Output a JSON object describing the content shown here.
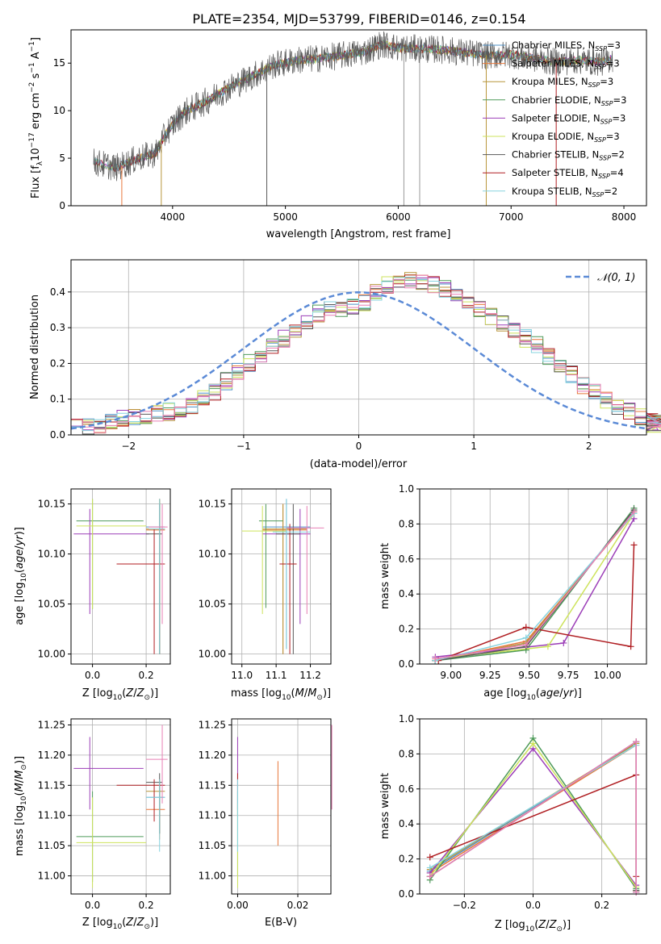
{
  "figure": {
    "suptitle": "PLATE=2354, MJD=53799, FIBERID=0146, z=0.154"
  },
  "palette": {
    "Chabrier MILES": "#4f91c7",
    "Salpeter MILES": "#e8773a",
    "Kroupa MILES": "#b8963c",
    "Chabrier ELODIE": "#4e9a5a",
    "Salpeter ELODIE": "#9c3fb8",
    "Kroupa ELODIE": "#cde35c",
    "Chabrier STELIB": "#595959",
    "Salpeter STELIB": "#b01e22",
    "Kroupa STELIB": "#86d3df",
    "gauss": "#5b8ad6",
    "pink": "#e87fb4"
  },
  "chart_data": [
    {
      "id": "spectrum",
      "type": "line",
      "title": "",
      "xlabel": "wavelength [Angstrom, rest frame]",
      "ylabel": "Flux [f_λ 10^-17 erg cm^-2 s^-1 A^-1]",
      "xlim": [
        3100,
        8200
      ],
      "ylim": [
        0,
        18.5
      ],
      "xticks": [
        "4000",
        "5000",
        "6000",
        "7000",
        "8000"
      ],
      "yticks": [
        "0",
        "5",
        "10",
        "15"
      ],
      "grid": false,
      "legend_position": "top-right",
      "series": [
        {
          "name": "Chabrier MILES, N_SSP=3"
        },
        {
          "name": "Salpeter MILES, N_SSP=3"
        },
        {
          "name": "Kroupa MILES, N_SSP=3"
        },
        {
          "name": "Chabrier ELODIE, N_SSP=3"
        },
        {
          "name": "Salpeter ELODIE, N_SSP=3"
        },
        {
          "name": "Kroupa ELODIE, N_SSP=3"
        },
        {
          "name": "Chabrier STELIB, N_SSP=2"
        },
        {
          "name": "Salpeter STELIB, N_SSP=4"
        },
        {
          "name": "Kroupa STELIB, N_SSP=2"
        }
      ],
      "continuum": {
        "x": [
          3300,
          3500,
          3700,
          3850,
          3950,
          4100,
          4300,
          4500,
          4700,
          4900,
          5100,
          5300,
          5500,
          5700,
          5850,
          6000,
          6200,
          6400,
          6600,
          6800,
          7000,
          7200,
          7400,
          7600,
          7800,
          7900
        ],
        "y": [
          4.6,
          4.0,
          5.0,
          5.5,
          7.8,
          9.8,
          11.0,
          12.4,
          13.6,
          14.8,
          15.3,
          15.5,
          15.8,
          16.2,
          17.0,
          16.6,
          16.5,
          16.4,
          16.1,
          15.8,
          15.9,
          15.5,
          15.1,
          15.3,
          15.1,
          15.5
        ]
      }
    },
    {
      "id": "residuals",
      "type": "histogram",
      "xlabel": "(data-model)/error",
      "ylabel": "Normed distribution",
      "xlim": [
        -2.5,
        2.5
      ],
      "ylim": [
        0,
        0.49
      ],
      "xticks": [
        "−2",
        "−1",
        "0",
        "1",
        "2"
      ],
      "yticks": [
        "0.0",
        "0.1",
        "0.2",
        "0.3",
        "0.4"
      ],
      "grid": true,
      "legend": "𝒩(0, 1)",
      "legend_position": "top-right",
      "bin_width": 0.1,
      "bin_start": -2.5,
      "base": [
        0.02,
        0.025,
        0.03,
        0.035,
        0.045,
        0.05,
        0.055,
        0.06,
        0.065,
        0.075,
        0.08,
        0.1,
        0.12,
        0.15,
        0.18,
        0.2,
        0.22,
        0.25,
        0.27,
        0.29,
        0.32,
        0.34,
        0.35,
        0.35,
        0.36,
        0.37,
        0.4,
        0.42,
        0.43,
        0.43,
        0.43,
        0.42,
        0.41,
        0.39,
        0.37,
        0.35,
        0.33,
        0.31,
        0.29,
        0.27,
        0.25,
        0.22,
        0.2,
        0.17,
        0.14,
        0.12,
        0.1,
        0.08,
        0.065,
        0.05,
        0.04,
        0.035,
        0.03,
        0.03
      ]
    },
    {
      "id": "age-vs-Z",
      "type": "errorbar",
      "xlabel": "Z [log10(Z/Z☉)]",
      "ylabel": "age [log10(age/yr)]",
      "xlim": [
        -0.08,
        0.29
      ],
      "ylim": [
        9.99,
        10.165
      ],
      "xticks": [
        "0.0",
        "0.2"
      ],
      "yticks": [
        "10.00",
        "10.05",
        "10.10",
        "10.15"
      ],
      "grid": true,
      "points": [
        {
          "s": "Chabrier MILES",
          "x": 0.25,
          "y": 10.127,
          "xl": 0.2,
          "xh": 0.27,
          "yl": 10.0,
          "yh": 10.155
        },
        {
          "s": "Salpeter MILES",
          "x": 0.25,
          "y": 10.124,
          "xl": 0.2,
          "xh": 0.27,
          "yl": 10.0,
          "yh": 10.155
        },
        {
          "s": "Kroupa MILES",
          "x": 0.25,
          "y": 10.125,
          "xl": 0.2,
          "xh": 0.27,
          "yl": 10.0,
          "yh": 10.155
        },
        {
          "s": "Chabrier ELODIE",
          "x": 0.0,
          "y": 10.133,
          "xl": -0.06,
          "xh": 0.19,
          "yl": 10.045,
          "yh": 10.155
        },
        {
          "s": "Salpeter ELODIE",
          "x": -0.01,
          "y": 10.12,
          "xl": -0.07,
          "xh": 0.21,
          "yl": 10.04,
          "yh": 10.145
        },
        {
          "s": "Kroupa ELODIE",
          "x": 0.0,
          "y": 10.128,
          "xl": -0.06,
          "xh": 0.2,
          "yl": 10.045,
          "yh": 10.155
        },
        {
          "s": "Chabrier STELIB",
          "x": 0.25,
          "y": 10.12,
          "xl": 0.2,
          "xh": 0.26,
          "yl": 10.0,
          "yh": 10.15
        },
        {
          "s": "Salpeter STELIB",
          "x": 0.23,
          "y": 10.09,
          "xl": 0.09,
          "xh": 0.27,
          "yl": 10.0,
          "yh": 10.125
        },
        {
          "s": "Kroupa STELIB",
          "x": 0.25,
          "y": 10.125,
          "xl": 0.21,
          "xh": 0.27,
          "yl": 10.0,
          "yh": 10.155
        },
        {
          "s": "pink",
          "x": 0.26,
          "y": 10.127,
          "xl": 0.21,
          "xh": 0.28,
          "yl": 10.03,
          "yh": 10.15
        }
      ]
    },
    {
      "id": "age-vs-mass",
      "type": "errorbar",
      "xlabel": "mass [log10(M/M☉)]",
      "ylabel": "",
      "xlim": [
        10.97,
        11.26
      ],
      "ylim": [
        9.99,
        10.165
      ],
      "xticks": [
        "11.0",
        "11.1",
        "11.2"
      ],
      "yticks": [
        "10.00",
        "10.05",
        "10.10",
        "10.15"
      ],
      "grid": true,
      "points": [
        {
          "s": "Chabrier MILES",
          "x": 11.13,
          "y": 10.127,
          "xl": 11.06,
          "xh": 11.2,
          "yl": 10.005,
          "yh": 10.155
        },
        {
          "s": "Salpeter MILES",
          "x": 11.12,
          "y": 10.124,
          "xl": 11.06,
          "xh": 11.19,
          "yl": 10.0,
          "yh": 10.15
        },
        {
          "s": "Kroupa MILES",
          "x": 11.12,
          "y": 10.125,
          "xl": 11.06,
          "xh": 11.19,
          "yl": 10.0,
          "yh": 10.15
        },
        {
          "s": "Chabrier ELODIE",
          "x": 11.07,
          "y": 10.133,
          "xl": 11.05,
          "xh": 11.12,
          "yl": 10.046,
          "yh": 10.15
        },
        {
          "s": "Salpeter ELODIE",
          "x": 11.17,
          "y": 10.12,
          "xl": 11.06,
          "xh": 11.2,
          "yl": 10.03,
          "yh": 10.145
        },
        {
          "s": "Kroupa ELODIE",
          "x": 11.06,
          "y": 10.123,
          "xl": 11.0,
          "xh": 11.13,
          "yl": 10.04,
          "yh": 10.148
        },
        {
          "s": "Chabrier STELIB",
          "x": 11.15,
          "y": 10.12,
          "xl": 11.1,
          "xh": 11.17,
          "yl": 10.0,
          "yh": 10.15
        },
        {
          "s": "Salpeter STELIB",
          "x": 11.14,
          "y": 10.09,
          "xl": 11.11,
          "xh": 11.16,
          "yl": 10.0,
          "yh": 10.13
        },
        {
          "s": "Kroupa STELIB",
          "x": 11.13,
          "y": 10.122,
          "xl": 11.09,
          "xh": 11.2,
          "yl": 10.005,
          "yh": 10.155
        },
        {
          "s": "pink",
          "x": 11.19,
          "y": 10.126,
          "xl": 11.13,
          "xh": 11.24,
          "yl": 10.04,
          "yh": 10.148
        }
      ]
    },
    {
      "id": "weight-vs-age",
      "type": "line",
      "xlabel": "age [log10(age/yr)]",
      "ylabel": "mass weight",
      "xlim": [
        8.8,
        10.25
      ],
      "ylim": [
        0,
        1.0
      ],
      "xticks": [
        "9.00",
        "9.25",
        "9.50",
        "9.75",
        "10.00"
      ],
      "yticks": [
        "0.0",
        "0.2",
        "0.4",
        "0.6",
        "0.8",
        "1.0"
      ],
      "grid": true,
      "lines": [
        {
          "s": "Chabrier MILES",
          "x": [
            8.9,
            9.48,
            10.17
          ],
          "y": [
            0.02,
            0.12,
            0.87
          ]
        },
        {
          "s": "Salpeter MILES",
          "x": [
            8.9,
            9.48,
            10.17
          ],
          "y": [
            0.02,
            0.13,
            0.86
          ]
        },
        {
          "s": "Kroupa MILES",
          "x": [
            8.9,
            9.48,
            10.17
          ],
          "y": [
            0.02,
            0.12,
            0.87
          ]
        },
        {
          "s": "Chabrier ELODIE",
          "x": [
            8.9,
            9.48,
            10.17
          ],
          "y": [
            0.02,
            0.08,
            0.89
          ]
        },
        {
          "s": "Salpeter ELODIE",
          "x": [
            8.9,
            9.72,
            10.17
          ],
          "y": [
            0.04,
            0.12,
            0.83
          ]
        },
        {
          "s": "Kroupa ELODIE",
          "x": [
            8.9,
            9.62,
            10.17
          ],
          "y": [
            0.03,
            0.1,
            0.86
          ]
        },
        {
          "s": "Chabrier STELIB",
          "x": [
            8.9,
            9.48,
            10.17
          ],
          "y": [
            0.02,
            0.1,
            0.88
          ]
        },
        {
          "s": "Salpeter STELIB",
          "x": [
            8.92,
            9.48,
            10.15,
            10.17
          ],
          "y": [
            0.02,
            0.21,
            0.1,
            0.68
          ]
        },
        {
          "s": "Kroupa STELIB",
          "x": [
            8.9,
            9.48,
            10.17
          ],
          "y": [
            0.02,
            0.15,
            0.86
          ]
        },
        {
          "s": "pink",
          "x": [
            8.9,
            9.48,
            10.17
          ],
          "y": [
            0.03,
            0.11,
            0.87
          ]
        }
      ]
    },
    {
      "id": "mass-vs-Z",
      "type": "errorbar",
      "xlabel": "Z [log10(Z/Z☉)]",
      "ylabel": "mass [log10(M/M☉)]",
      "xlim": [
        -0.08,
        0.29
      ],
      "ylim": [
        10.97,
        11.26
      ],
      "xticks": [
        "0.0",
        "0.2"
      ],
      "yticks": [
        "11.00",
        "11.05",
        "11.10",
        "11.15",
        "11.20",
        "11.25"
      ],
      "grid": true,
      "points": [
        {
          "s": "Chabrier MILES",
          "x": 0.25,
          "y": 11.13,
          "xl": 0.2,
          "xh": 0.27,
          "yl": 11.07,
          "yh": 11.16
        },
        {
          "s": "Salpeter MILES",
          "x": 0.25,
          "y": 11.11,
          "xl": 0.2,
          "xh": 0.27,
          "yl": 11.06,
          "yh": 11.15
        },
        {
          "s": "Kroupa MILES",
          "x": 0.25,
          "y": 11.14,
          "xl": 0.2,
          "xh": 0.27,
          "yl": 11.07,
          "yh": 11.16
        },
        {
          "s": "Chabrier ELODIE",
          "x": 0.0,
          "y": 11.065,
          "xl": -0.06,
          "xh": 0.19,
          "yl": 10.99,
          "yh": 11.14
        },
        {
          "s": "Salpeter ELODIE",
          "x": -0.01,
          "y": 11.178,
          "xl": -0.07,
          "xh": 0.19,
          "yl": 11.11,
          "yh": 11.23
        },
        {
          "s": "Kroupa ELODIE",
          "x": 0.0,
          "y": 11.055,
          "xl": -0.06,
          "xh": 0.2,
          "yl": 10.98,
          "yh": 11.13
        },
        {
          "s": "Chabrier STELIB",
          "x": 0.25,
          "y": 11.155,
          "xl": 0.2,
          "xh": 0.26,
          "yl": 11.07,
          "yh": 11.17
        },
        {
          "s": "Salpeter STELIB",
          "x": 0.23,
          "y": 11.15,
          "xl": 0.09,
          "xh": 0.27,
          "yl": 11.09,
          "yh": 11.16
        },
        {
          "s": "Kroupa STELIB",
          "x": 0.25,
          "y": 11.13,
          "xl": 0.2,
          "xh": 0.27,
          "yl": 11.04,
          "yh": 11.16
        },
        {
          "s": "pink",
          "x": 0.26,
          "y": 11.193,
          "xl": 0.2,
          "xh": 0.28,
          "yl": 11.12,
          "yh": 11.25
        }
      ]
    },
    {
      "id": "mass-vs-EBV",
      "type": "errorbar",
      "xlabel": "E(B-V)",
      "ylabel": "",
      "xlim": [
        -0.002,
        0.031
      ],
      "ylim": [
        10.97,
        11.26
      ],
      "xticks": [
        "0.00",
        "0.02"
      ],
      "yticks": [
        "11.00",
        "11.05",
        "11.10",
        "11.15",
        "11.20",
        "11.25"
      ],
      "grid": true,
      "points": [
        {
          "s": "Salpeter ELODIE",
          "x": 0.0,
          "y": 11.17,
          "xl": 0.0,
          "xh": 0.0,
          "yl": 11.11,
          "yh": 11.23
        },
        {
          "s": "Salpeter STELIB",
          "x": 0.0,
          "y": 11.15,
          "xl": 0.0,
          "xh": 0.0,
          "yl": 11.1,
          "yh": 11.17
        },
        {
          "s": "Chabrier ELODIE",
          "x": 0.0,
          "y": 11.07,
          "xl": 0.0,
          "xh": 0.0,
          "yl": 11.0,
          "yh": 11.14
        },
        {
          "s": "Kroupa ELODIE",
          "x": 0.0,
          "y": 11.05,
          "xl": 0.0,
          "xh": 0.0,
          "yl": 10.98,
          "yh": 11.12
        },
        {
          "s": "Kroupa STELIB",
          "x": 0.0,
          "y": 11.1,
          "xl": 0.0,
          "xh": 0.0,
          "yl": 11.04,
          "yh": 11.16
        },
        {
          "s": "Salpeter MILES",
          "x": 0.0134,
          "y": 11.12,
          "xl": 0.0134,
          "xh": 0.0134,
          "yl": 11.05,
          "yh": 11.19
        },
        {
          "s": "pink",
          "x": 0.0313,
          "y": 11.18,
          "xl": 0.0313,
          "xh": 0.0313,
          "yl": 11.11,
          "yh": 11.25
        }
      ]
    },
    {
      "id": "weight-vs-Z",
      "type": "line",
      "xlabel": "Z [log10(Z/Z☉)]",
      "ylabel": "mass weight",
      "xlim": [
        -0.33,
        0.33
      ],
      "ylim": [
        0,
        1.0
      ],
      "xticks": [
        "−0.2",
        "0.0",
        "0.2"
      ],
      "yticks": [
        "0.0",
        "0.2",
        "0.4",
        "0.6",
        "0.8",
        "1.0"
      ],
      "grid": true,
      "lines": [
        {
          "s": "Chabrier MILES",
          "x": [
            -0.3,
            0.3,
            0.3
          ],
          "y": [
            0.13,
            0.86,
            0.01
          ]
        },
        {
          "s": "Salpeter MILES",
          "x": [
            -0.3,
            0.3,
            0.3
          ],
          "y": [
            0.12,
            0.85,
            0.02
          ]
        },
        {
          "s": "Kroupa MILES",
          "x": [
            -0.3,
            0.3,
            0.3
          ],
          "y": [
            0.14,
            0.86,
            0.02
          ]
        },
        {
          "s": "Chabrier ELODIE",
          "x": [
            -0.3,
            0.0,
            0.3
          ],
          "y": [
            0.08,
            0.89,
            0.03
          ]
        },
        {
          "s": "Salpeter ELODIE",
          "x": [
            -0.3,
            0.0,
            0.3
          ],
          "y": [
            0.12,
            0.83,
            0.05
          ]
        },
        {
          "s": "Kroupa ELODIE",
          "x": [
            -0.3,
            0.0,
            0.3
          ],
          "y": [
            0.1,
            0.86,
            0.04
          ]
        },
        {
          "s": "Chabrier STELIB",
          "x": [
            -0.3,
            0.3,
            0.3
          ],
          "y": [
            0.1,
            0.87,
            0.02
          ]
        },
        {
          "s": "Salpeter STELIB",
          "x": [
            -0.3,
            0.3,
            0.3,
            0.3
          ],
          "y": [
            0.21,
            0.68,
            0.1,
            0.01
          ]
        },
        {
          "s": "Kroupa STELIB",
          "x": [
            -0.3,
            0.3,
            0.3
          ],
          "y": [
            0.15,
            0.85,
            0.01
          ]
        },
        {
          "s": "pink",
          "x": [
            -0.3,
            0.3,
            0.3
          ],
          "y": [
            0.1,
            0.87,
            0.01
          ]
        }
      ]
    }
  ]
}
